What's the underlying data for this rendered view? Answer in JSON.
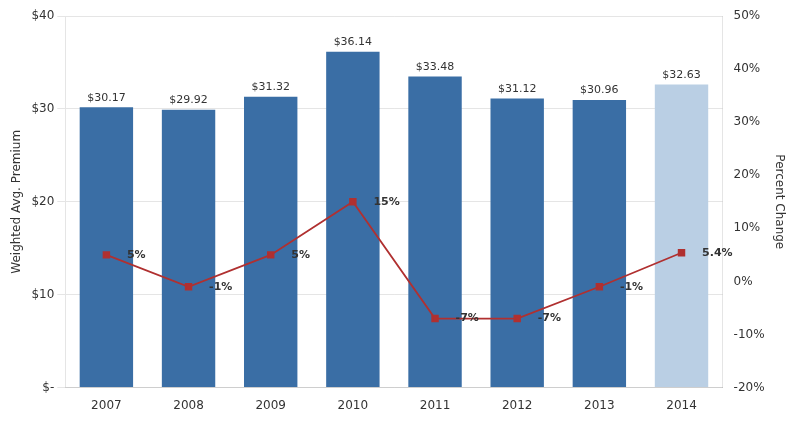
{
  "chart_data": {
    "type": "bar",
    "categories": [
      "2007",
      "2008",
      "2009",
      "2010",
      "2011",
      "2012",
      "2013",
      "2014"
    ],
    "ylabel": "Weighted Avg. Premium",
    "y2label": "Percent Change",
    "ylim": [
      0,
      40
    ],
    "yticks": [
      {
        "value": 0,
        "label": "$-"
      },
      {
        "value": 10,
        "label": "$10"
      },
      {
        "value": 20,
        "label": "$20"
      },
      {
        "value": 30,
        "label": "$30"
      },
      {
        "value": 40,
        "label": "$40"
      }
    ],
    "y2lim": [
      -20,
      50
    ],
    "y2ticks": [
      {
        "value": -20,
        "label": "-20%"
      },
      {
        "value": -10,
        "label": "-10%"
      },
      {
        "value": 0,
        "label": "0%"
      },
      {
        "value": 10,
        "label": "10%"
      },
      {
        "value": 20,
        "label": "20%"
      },
      {
        "value": 30,
        "label": "30%"
      },
      {
        "value": 40,
        "label": "40%"
      },
      {
        "value": 50,
        "label": "50%"
      }
    ],
    "grid": true,
    "series": [
      {
        "type": "bar",
        "colors": [
          "#3A6EA5",
          "#3A6EA5",
          "#3A6EA5",
          "#3A6EA5",
          "#3A6EA5",
          "#3A6EA5",
          "#3A6EA5",
          "#BACFE4"
        ],
        "values": [
          30.17,
          29.92,
          31.32,
          36.14,
          33.48,
          31.12,
          30.96,
          32.63
        ],
        "value_labels": [
          "$30.17",
          "$29.92",
          "$31.32",
          "$36.14",
          "$33.48",
          "$31.12",
          "$30.96",
          "$32.63"
        ],
        "data_labels": true
      },
      {
        "type": "line",
        "axis": "y2",
        "color": "#B03030",
        "marker": "square",
        "values": [
          5,
          -1,
          5,
          15,
          -7,
          -7,
          -1,
          5.4
        ],
        "value_labels": [
          "5%",
          "-1%",
          "5%",
          "15%",
          "-7%",
          "-7%",
          "-1%",
          "5.4%"
        ],
        "data_labels": true
      }
    ]
  }
}
